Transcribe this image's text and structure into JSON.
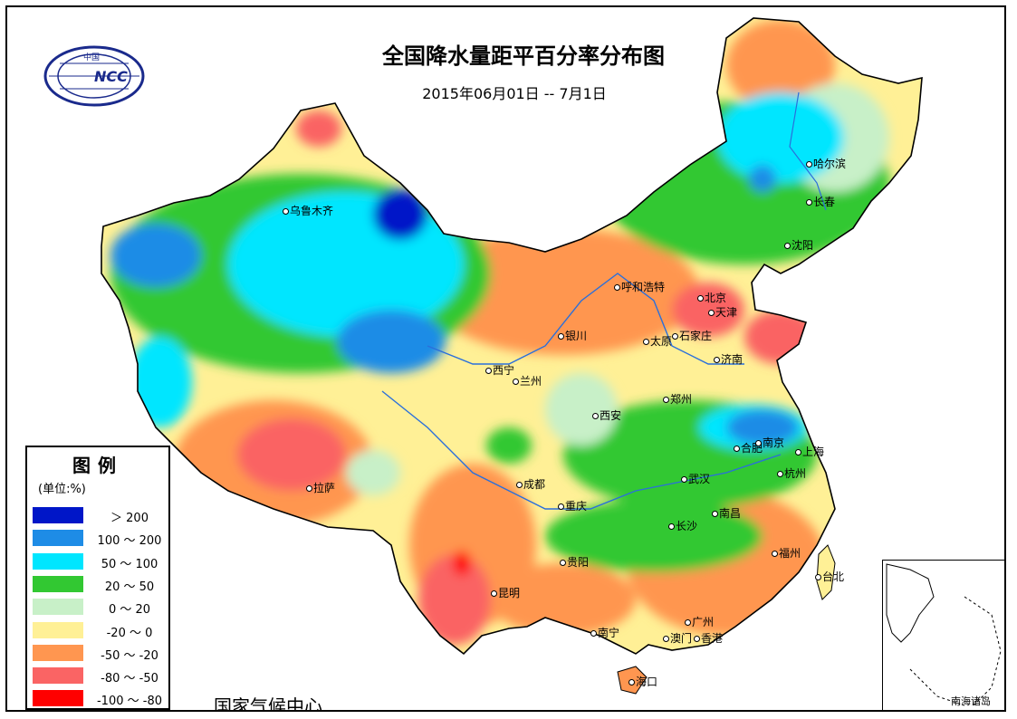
{
  "map": {
    "title": "全国降水量距平百分率分布图",
    "subtitle": "2015年06月01日 -- 7月1日",
    "organization": "国家气候中心",
    "logo_text": "NCC",
    "logo_label": "中国",
    "inset_label": "南海诸岛"
  },
  "legend": {
    "title": "图例",
    "unit": "(单位:%)",
    "items": [
      {
        "label": "＞ 200",
        "color": "#0016c8"
      },
      {
        "label": "100 ～ 200",
        "color": "#1e8ce6"
      },
      {
        "label": "50 ～ 100",
        "color": "#00e6ff"
      },
      {
        "label": "20 ～ 50",
        "color": "#32c832"
      },
      {
        "label": "0 ～ 20",
        "color": "#c8f0c8"
      },
      {
        "label": "-20 ～ 0",
        "color": "#fff096"
      },
      {
        "label": "-50 ～ -20",
        "color": "#ff9650"
      },
      {
        "label": "-80 ～ -50",
        "color": "#fa6464"
      },
      {
        "label": "-100 ～ -80",
        "color": "#ff0000"
      }
    ]
  },
  "cities": [
    {
      "name": "哈尔滨"
    },
    {
      "name": "长春"
    },
    {
      "name": "沈阳"
    },
    {
      "name": "乌鲁木齐"
    },
    {
      "name": "呼和浩特"
    },
    {
      "name": "北京"
    },
    {
      "name": "天津"
    },
    {
      "name": "银川"
    },
    {
      "name": "太原"
    },
    {
      "name": "石家庄"
    },
    {
      "name": "济南"
    },
    {
      "name": "西宁"
    },
    {
      "name": "兰州"
    },
    {
      "name": "郑州"
    },
    {
      "name": "西安"
    },
    {
      "name": "合肥"
    },
    {
      "name": "南京"
    },
    {
      "name": "上海"
    },
    {
      "name": "杭州"
    },
    {
      "name": "拉萨"
    },
    {
      "name": "成都"
    },
    {
      "name": "武汉"
    },
    {
      "name": "重庆"
    },
    {
      "name": "南昌"
    },
    {
      "name": "长沙"
    },
    {
      "name": "贵阳"
    },
    {
      "name": "福州"
    },
    {
      "name": "台北"
    },
    {
      "name": "昆明"
    },
    {
      "name": "南宁"
    },
    {
      "name": "广州"
    },
    {
      "name": "澳门"
    },
    {
      "name": "香港"
    },
    {
      "name": "海口"
    }
  ]
}
